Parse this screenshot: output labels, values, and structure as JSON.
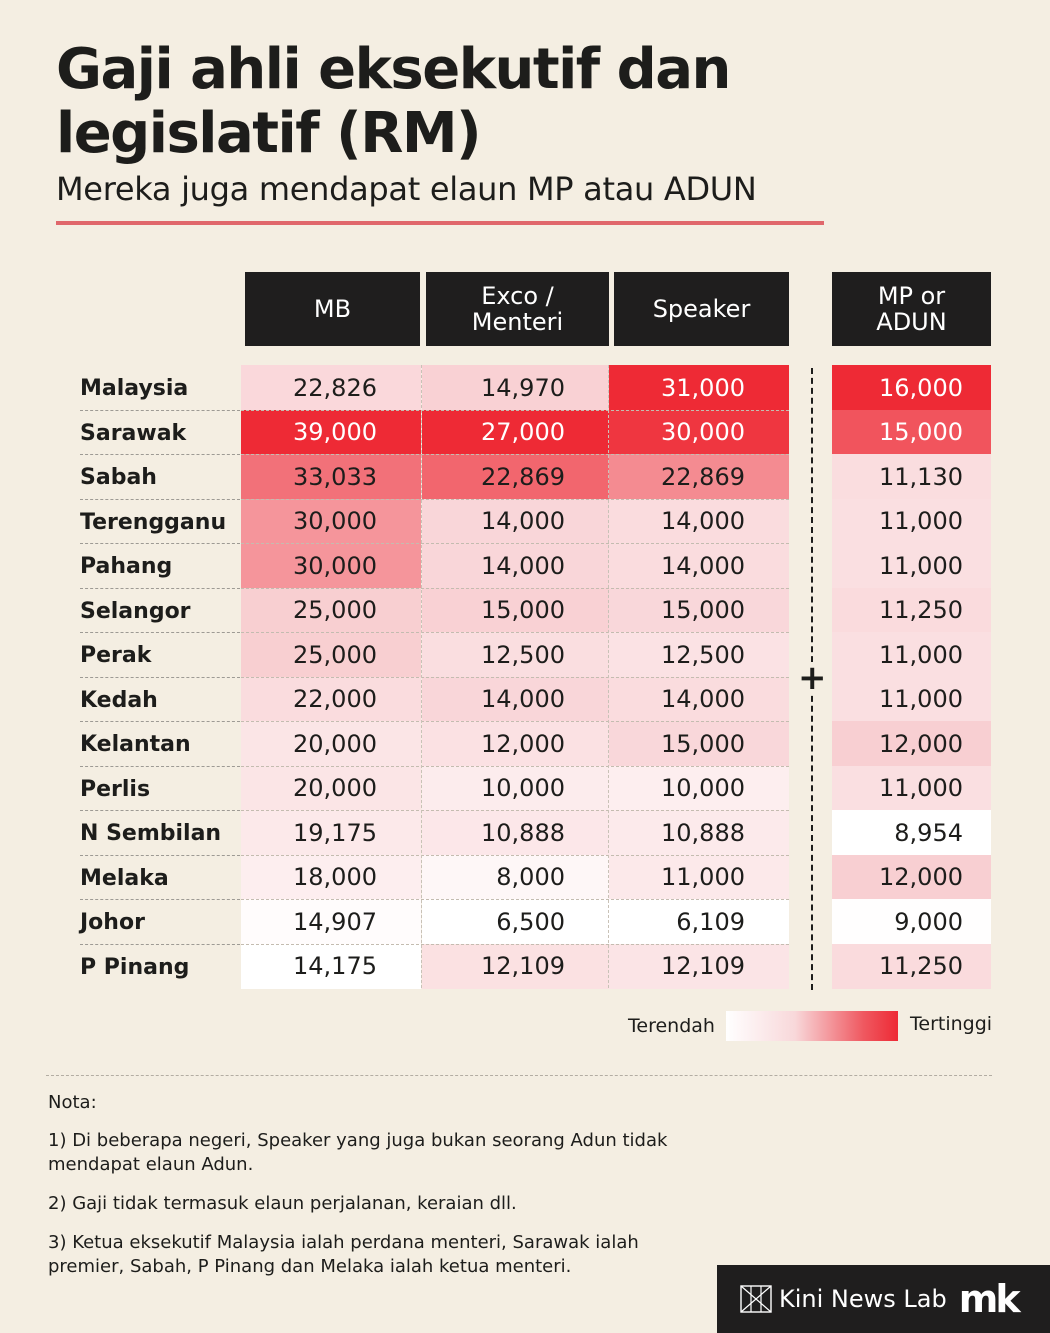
{
  "title": "Gaji ahli eksekutif dan legislatif (RM)",
  "subtitle": "Mereka juga mendapat elaun MP atau ADUN",
  "chart_data": {
    "type": "heatmap",
    "title": "Gaji ahli eksekutif dan legislatif (RM)",
    "subtitle": "Mereka juga mendapat elaun MP atau ADUN",
    "columns": [
      "MB",
      "Exco /\nMenteri",
      "Speaker",
      "MP or\nADUN"
    ],
    "rows": [
      {
        "name": "Malaysia",
        "values": [
          "22,826",
          "14,970",
          "31,000",
          "16,000"
        ]
      },
      {
        "name": "Sarawak",
        "values": [
          "39,000",
          "27,000",
          "30,000",
          "15,000"
        ]
      },
      {
        "name": "Sabah",
        "values": [
          "33,033",
          "22,869",
          "22,869",
          "11,130"
        ]
      },
      {
        "name": "Terengganu",
        "values": [
          "30,000",
          "14,000",
          "14,000",
          "11,000"
        ]
      },
      {
        "name": "Pahang",
        "values": [
          "30,000",
          "14,000",
          "14,000",
          "11,000"
        ]
      },
      {
        "name": "Selangor",
        "values": [
          "25,000",
          "15,000",
          "15,000",
          "11,250"
        ]
      },
      {
        "name": "Perak",
        "values": [
          "25,000",
          "12,500",
          "12,500",
          "11,000"
        ]
      },
      {
        "name": "Kedah",
        "values": [
          "22,000",
          "14,000",
          "14,000",
          "11,000"
        ]
      },
      {
        "name": "Kelantan",
        "values": [
          "20,000",
          "12,000",
          "15,000",
          "12,000"
        ]
      },
      {
        "name": "Perlis",
        "values": [
          "20,000",
          "10,000",
          "10,000",
          "11,000"
        ]
      },
      {
        "name": "N Sembilan",
        "values": [
          "19,175",
          "10,888",
          "10,888",
          "8,954"
        ]
      },
      {
        "name": "Melaka",
        "values": [
          "18,000",
          "8,000",
          "11,000",
          "12,000"
        ]
      },
      {
        "name": "Johor",
        "values": [
          "14,907",
          "6,500",
          "6,109",
          "9,000"
        ]
      },
      {
        "name": "P Pinang",
        "values": [
          "14,175",
          "12,109",
          "12,109",
          "11,250"
        ]
      }
    ],
    "legend": {
      "low": "Terendah",
      "high": "Tertinggi"
    },
    "colors": {
      "low": "#ffffff",
      "high": "#ee2a35"
    }
  },
  "plus_symbol": "+",
  "notes": {
    "heading": "Nota:",
    "items": [
      "1) Di beberapa negeri, Speaker yang juga bukan seorang Adun tidak mendapat elaun Adun.",
      "2) Gaji tidak termasuk elaun perjalanan, keraian dll.",
      "3) Ketua eksekutif Malaysia ialah perdana menteri, Sarawak ialah premier, Sabah, P Pinang dan Melaka ialah ketua menteri."
    ]
  },
  "footer": {
    "brand": "Kini News Lab",
    "logo": "mk"
  }
}
